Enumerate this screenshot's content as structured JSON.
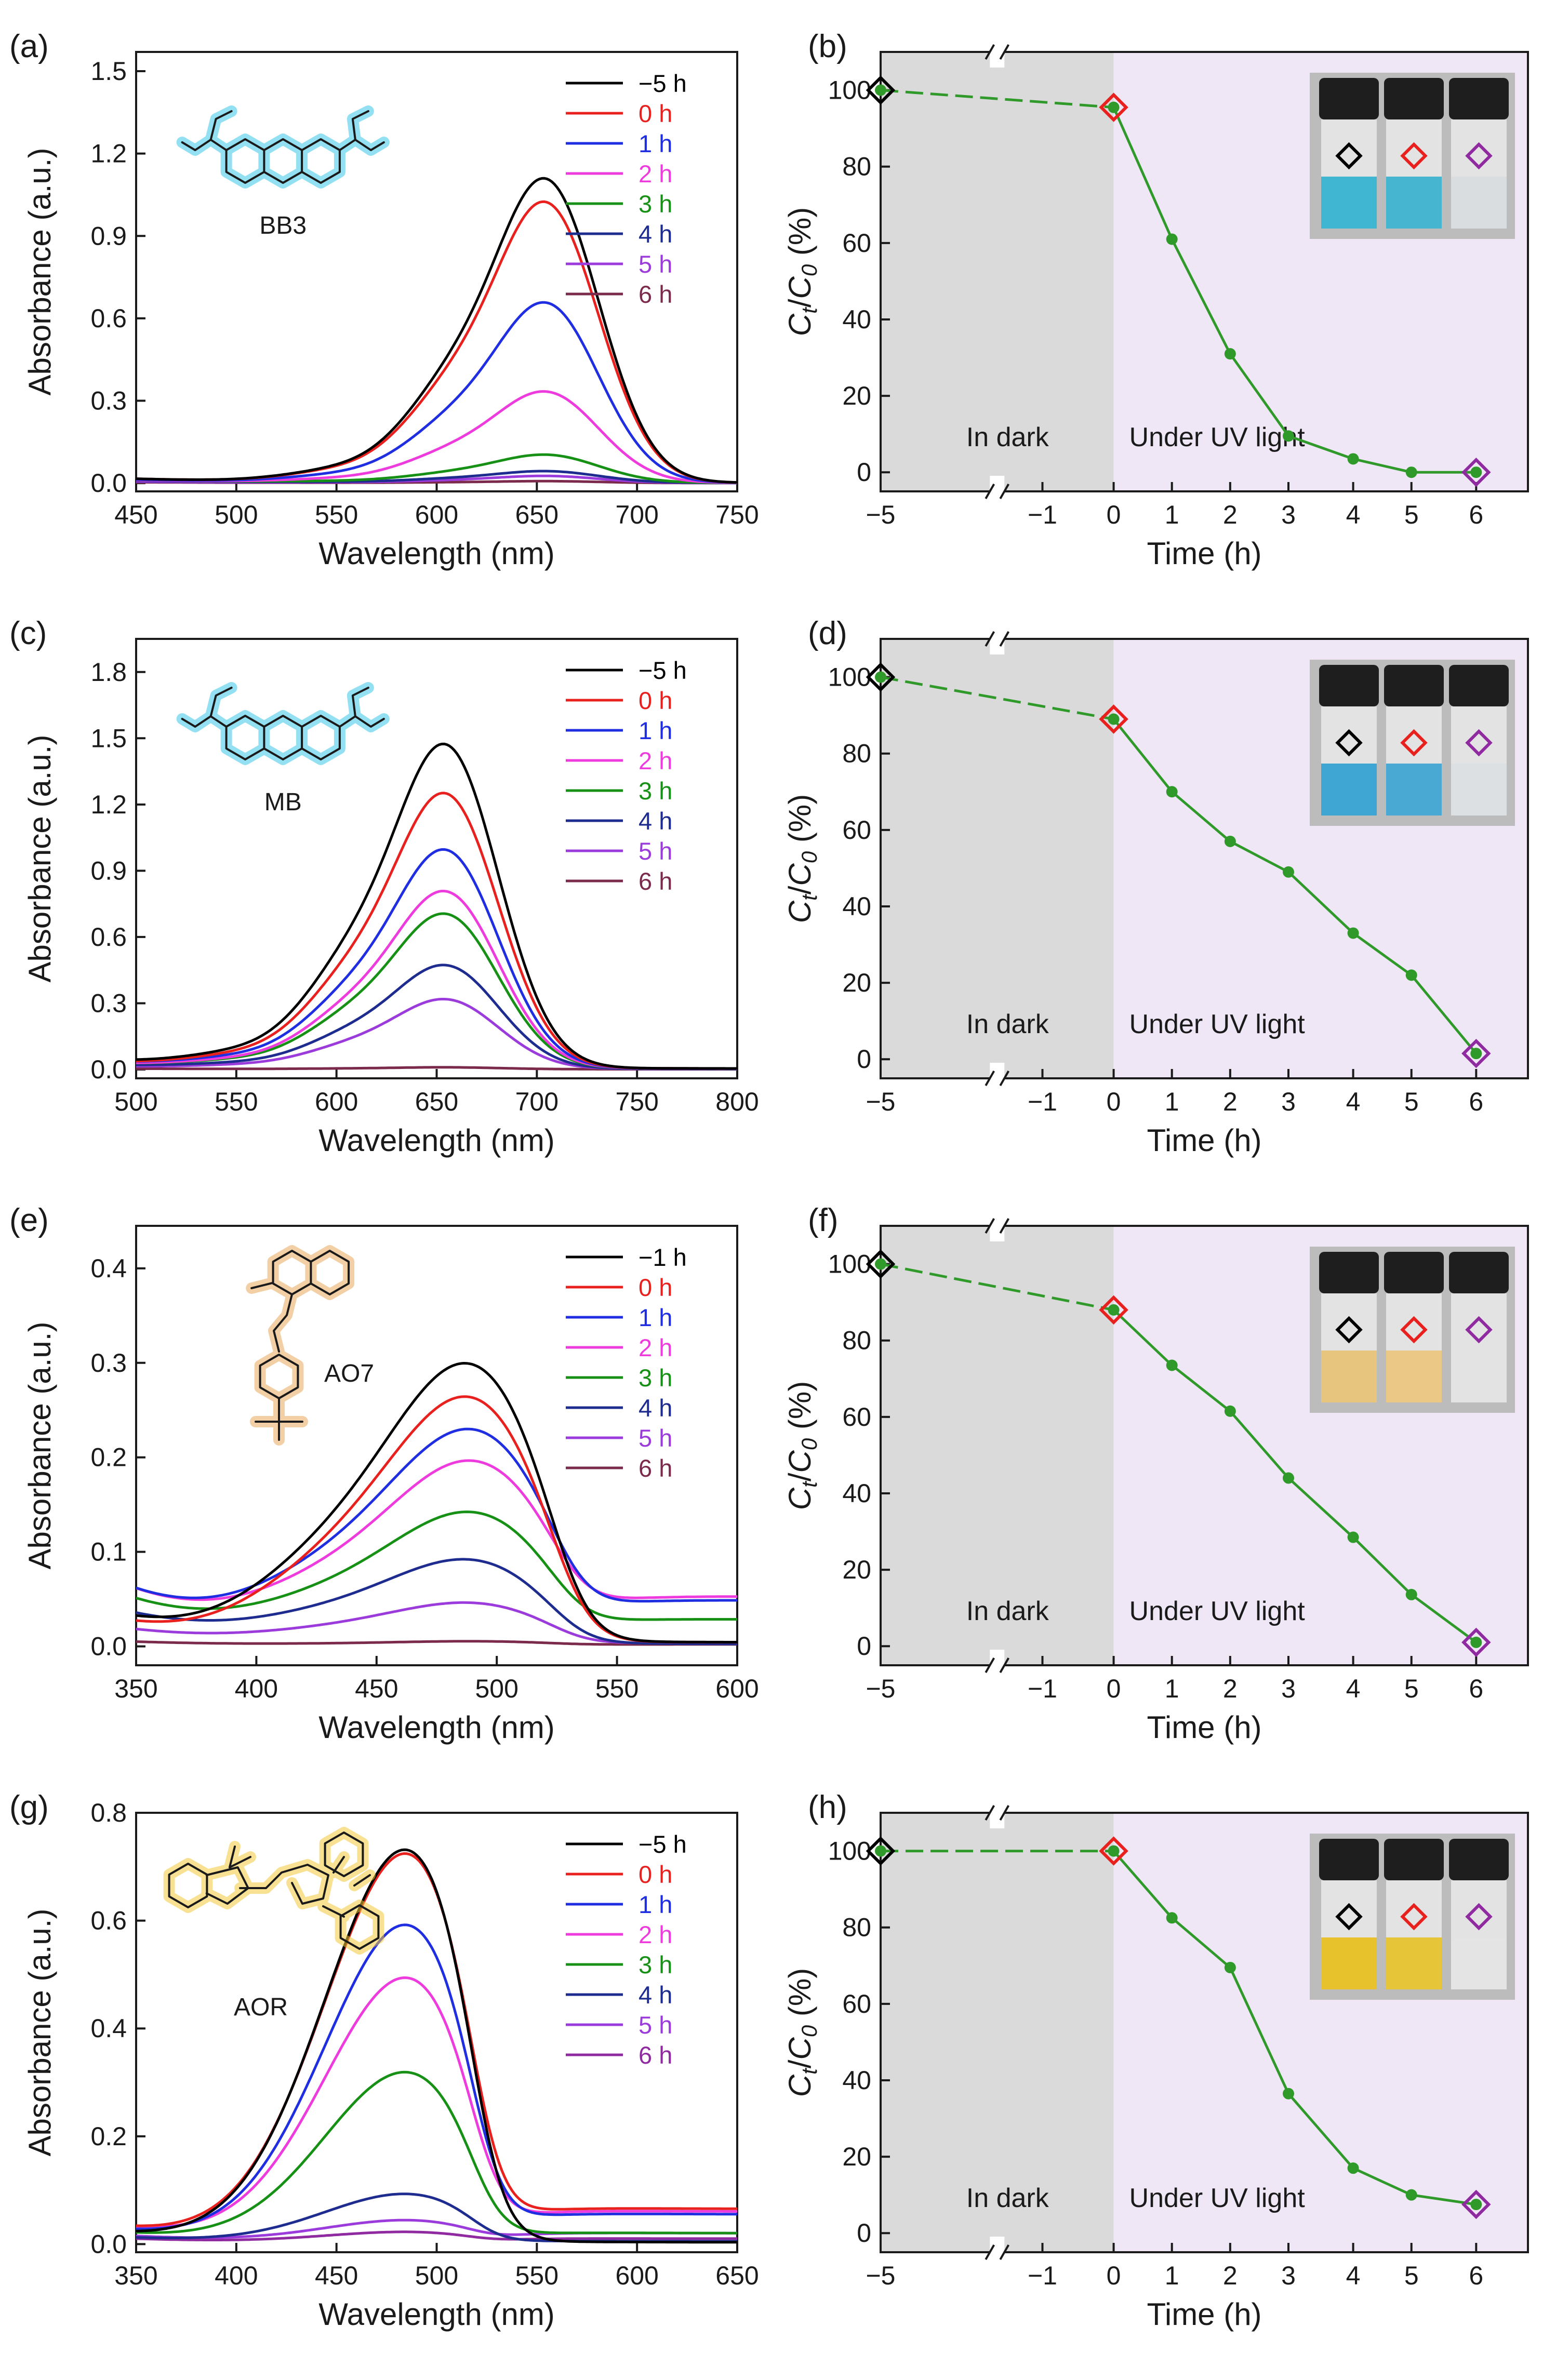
{
  "figure": {
    "colors": {
      "-5": "#000000",
      "-1": "#000000",
      "0": "#e8211e",
      "1": "#1f2ee0",
      "2": "#ee3bdd",
      "3": "#179016",
      "4": "#1d2c8e",
      "5": "#9b3bdc",
      "6": "#7b2a4c",
      "6AOR": "#8f2aa0",
      "line": "#2f9a2a",
      "dark": "#dadada",
      "uv": "#efe7f6"
    }
  },
  "chart_data": [
    {
      "id": "a",
      "type": "line",
      "panel_label": "(a)",
      "dye": "BB3",
      "glow": "#3ac6e8",
      "xlabel": "Wavelength (nm)",
      "ylabel": "Absorbance (a.u.)",
      "xlim": [
        450,
        750
      ],
      "ylim": [
        -0.03,
        1.57
      ],
      "xticks": [
        "450",
        "500",
        "550",
        "600",
        "650",
        "700",
        "750"
      ],
      "yticks": [
        "0.0",
        "0.3",
        "0.6",
        "0.9",
        "1.2",
        "1.5"
      ],
      "series": [
        {
          "name": "−5 h",
          "ckey": "-5",
          "shape": {
            "k": [
              0.015,
              0.6,
              0.02,
              1.3,
              0.012,
              45,
              0.005,
              0
            ]
          }
        },
        {
          "name": "0 h",
          "ckey": "0",
          "shape": {
            "k": [
              0.015,
              0.52,
              0.02,
              1.2,
              0.012,
              45,
              0.005,
              0
            ]
          }
        },
        {
          "name": "1 h",
          "ckey": "1",
          "shape": {
            "k": [
              0.012,
              0.34,
              0.02,
              0.77,
              0.01,
              45,
              0.005,
              0
            ]
          }
        },
        {
          "name": "2 h",
          "ckey": "2",
          "shape": {
            "k": [
              0.01,
              0.18,
              0.015,
              0.39,
              0.008,
              45,
              0.004,
              0
            ]
          }
        },
        {
          "name": "3 h",
          "ckey": "3",
          "shape": {
            "k": [
              0.01,
              0.06,
              0.012,
              0.12,
              0.006,
              40,
              0.004,
              0
            ]
          }
        },
        {
          "name": "4 h",
          "ckey": "4",
          "shape": {
            "k": [
              0.008,
              0.04,
              0.01,
              0.05,
              0.004,
              40,
              0.003,
              0
            ]
          }
        },
        {
          "name": "5 h",
          "ckey": "5",
          "shape": {
            "k": [
              0.005,
              0.025,
              0.005,
              0.03,
              0.003,
              40,
              0.002,
              0
            ]
          }
        },
        {
          "name": "6 h",
          "ckey": "6",
          "shape": {
            "k": [
              0.003,
              0.005,
              0.003,
              0.008,
              0.001,
              40,
              0.001,
              0
            ]
          }
        }
      ]
    },
    {
      "id": "b",
      "type": "line",
      "panel_label": "(b)",
      "xlabel": "Time (h)",
      "ylabel": "Ct/C0 (%)",
      "ylim": [
        -5,
        110
      ],
      "xticks": [
        "−5",
        "−1",
        "0",
        "1",
        "2",
        "3",
        "4",
        "5",
        "6"
      ],
      "yticks": [
        "0",
        "20",
        "40",
        "60",
        "80",
        "100"
      ],
      "region_labels": [
        "In dark",
        "Under UV light"
      ],
      "x": [
        -5,
        0,
        1,
        2,
        3,
        4,
        5,
        6
      ],
      "values": [
        100,
        95.5,
        61,
        31,
        9.5,
        3.5,
        0,
        0
      ]
    },
    {
      "id": "c",
      "type": "line",
      "panel_label": "(c)",
      "dye": "MB",
      "glow": "#3ac6e8",
      "xlabel": "Wavelength (nm)",
      "ylabel": "Absorbance (a.u.)",
      "xlim": [
        500,
        800
      ],
      "ylim": [
        -0.04,
        1.95
      ],
      "xticks": [
        "500",
        "550",
        "600",
        "650",
        "700",
        "750",
        "800"
      ],
      "yticks": [
        "0.0",
        "0.3",
        "0.6",
        "0.9",
        "1.2",
        "1.5",
        "1.8"
      ],
      "series": [
        {
          "name": "−5 h",
          "ckey": "-5",
          "shape": {
            "k": [
              0.06,
              0.97,
              0.06,
              1.72,
              0.04,
              50,
              0.02,
              0
            ]
          }
        },
        {
          "name": "0 h",
          "ckey": "0",
          "shape": {
            "k": [
              0.05,
              0.84,
              0.05,
              1.46,
              0.035,
              50,
              0.02,
              0
            ]
          }
        },
        {
          "name": "1 h",
          "ckey": "1",
          "shape": {
            "k": [
              0.05,
              0.65,
              0.05,
              1.16,
              0.03,
              50,
              0.02,
              0
            ]
          }
        },
        {
          "name": "2 h",
          "ckey": "2",
          "shape": {
            "k": [
              0.04,
              0.55,
              0.04,
              0.94,
              0.03,
              50,
              0.02,
              0
            ]
          }
        },
        {
          "name": "3 h",
          "ckey": "3",
          "shape": {
            "k": [
              0.04,
              0.47,
              0.04,
              0.82,
              0.03,
              50,
              0.02,
              0
            ]
          }
        },
        {
          "name": "4 h",
          "ckey": "4",
          "shape": {
            "k": [
              0.03,
              0.34,
              0.03,
              0.55,
              0.02,
              50,
              0.01,
              0
            ]
          }
        },
        {
          "name": "5 h",
          "ckey": "5",
          "shape": {
            "k": [
              0.02,
              0.22,
              0.02,
              0.37,
              0.02,
              50,
              0.01,
              0
            ]
          }
        },
        {
          "name": "6 h",
          "ckey": "6",
          "shape": {
            "k": [
              0.005,
              0.005,
              0.005,
              0.01,
              0.005,
              50,
              0.005,
              0
            ]
          }
        }
      ]
    },
    {
      "id": "d",
      "type": "line",
      "panel_label": "(d)",
      "xlabel": "Time (h)",
      "ylabel": "Ct/C0 (%)",
      "ylim": [
        -5,
        110
      ],
      "xticks": [
        "−5",
        "−1",
        "0",
        "1",
        "2",
        "3",
        "4",
        "5",
        "6"
      ],
      "yticks": [
        "0",
        "20",
        "40",
        "60",
        "80",
        "100"
      ],
      "region_labels": [
        "In dark",
        "Under UV light"
      ],
      "x": [
        -5,
        0,
        1,
        2,
        3,
        4,
        5,
        6
      ],
      "values": [
        100,
        89,
        70,
        57,
        49,
        33,
        22,
        1.5
      ]
    },
    {
      "id": "e",
      "type": "line",
      "panel_label": "(e)",
      "dye": "AO7",
      "glow": "#e8a85a",
      "xlabel": "Wavelength (nm)",
      "ylabel": "Absorbance (a.u.)",
      "xlim": [
        350,
        600
      ],
      "ylim": [
        -0.02,
        0.445
      ],
      "xticks": [
        "350",
        "400",
        "450",
        "500",
        "550",
        "600"
      ],
      "yticks": [
        "0.0",
        "0.1",
        "0.2",
        "0.3",
        "0.4"
      ],
      "series": [
        {
          "name": "−1 h",
          "ckey": "-1",
          "shape": {
            "e": [
              0.03,
              0.315,
              485,
              0.004
            ]
          }
        },
        {
          "name": "0 h",
          "ckey": "0",
          "shape": {
            "e": [
              0.025,
              0.278,
              485,
              0.004
            ]
          }
        },
        {
          "name": "1 h",
          "ckey": "1",
          "shape": {
            "e": [
              0.06,
              0.233,
              485,
              0.048
            ]
          }
        },
        {
          "name": "2 h",
          "ckey": "2",
          "shape": {
            "e": [
              0.06,
              0.197,
              485,
              0.052
            ]
          }
        },
        {
          "name": "3 h",
          "ckey": "3",
          "shape": {
            "e": [
              0.05,
              0.143,
              485,
              0.028
            ]
          }
        },
        {
          "name": "4 h",
          "ckey": "4",
          "shape": {
            "e": [
              0.035,
              0.094,
              485,
              0.002
            ]
          }
        },
        {
          "name": "5 h",
          "ckey": "5",
          "shape": {
            "e": [
              0.018,
              0.047,
              485,
              0.003
            ]
          }
        },
        {
          "name": "6 h",
          "ckey": "6",
          "shape": {
            "e": [
              0.005,
              0.005,
              485,
              0.002
            ]
          }
        }
      ]
    },
    {
      "id": "f",
      "type": "line",
      "panel_label": "(f)",
      "xlabel": "Time (h)",
      "ylabel": "Ct/C0 (%)",
      "ylim": [
        -5,
        110
      ],
      "xticks": [
        "−5",
        "−1",
        "0",
        "1",
        "2",
        "3",
        "4",
        "5",
        "6"
      ],
      "yticks": [
        "0",
        "20",
        "40",
        "60",
        "80",
        "100"
      ],
      "region_labels": [
        "In dark",
        "Under UV light"
      ],
      "x": [
        -5,
        0,
        1,
        2,
        3,
        4,
        5,
        6
      ],
      "values": [
        100,
        88,
        73.5,
        61.5,
        44,
        28.5,
        13.5,
        1
      ]
    },
    {
      "id": "g",
      "type": "line",
      "panel_label": "(g)",
      "dye": "AOR",
      "glow": "#f2c83a",
      "xlabel": "Wavelength (nm)",
      "ylabel": "Absorbance (a.u.)",
      "xlim": [
        350,
        650
      ],
      "ylim": [
        -0.015,
        0.8
      ],
      "xticks": [
        "350",
        "400",
        "450",
        "500",
        "550",
        "600",
        "650"
      ],
      "yticks": [
        "0.0",
        "0.2",
        "0.4",
        "0.6",
        "0.8"
      ],
      "series": [
        {
          "name": "−5 h",
          "ckey": "-5",
          "shape": {
            "g": [
              0.02,
              0.705,
              485,
              0.003
            ]
          }
        },
        {
          "name": "0 h",
          "ckey": "0",
          "shape": {
            "g": [
              0.03,
              0.695,
              485,
              0.065
            ]
          }
        },
        {
          "name": "1 h",
          "ckey": "1",
          "shape": {
            "g": [
              0.025,
              0.568,
              485,
              0.055
            ]
          }
        },
        {
          "name": "2 h",
          "ckey": "2",
          "shape": {
            "g": [
              0.03,
              0.472,
              485,
              0.06
            ]
          }
        },
        {
          "name": "3 h",
          "ckey": "3",
          "shape": {
            "g": [
              0.02,
              0.305,
              485,
              0.02
            ]
          }
        },
        {
          "name": "4 h",
          "ckey": "4",
          "shape": {
            "g": [
              0.012,
              0.088,
              485,
              0.005
            ]
          }
        },
        {
          "name": "5 h",
          "ckey": "5",
          "shape": {
            "g": [
              0.015,
              0.04,
              485,
              0.02
            ]
          }
        },
        {
          "name": "6 h",
          "ckey": "6AOR",
          "shape": {
            "g": [
              0.01,
              0.02,
              485,
              0.01
            ]
          }
        }
      ]
    },
    {
      "id": "h",
      "type": "line",
      "panel_label": "(h)",
      "xlabel": "Time (h)",
      "ylabel": "Ct/C0 (%)",
      "ylim": [
        -5,
        110
      ],
      "xticks": [
        "−5",
        "−1",
        "0",
        "1",
        "2",
        "3",
        "4",
        "5",
        "6"
      ],
      "yticks": [
        "0",
        "20",
        "40",
        "60",
        "80",
        "100"
      ],
      "region_labels": [
        "In dark",
        "Under UV light"
      ],
      "x": [
        -5,
        0,
        1,
        2,
        3,
        4,
        5,
        6
      ],
      "values": [
        100,
        100,
        82.5,
        69.5,
        36.5,
        17,
        10,
        7.5
      ]
    }
  ]
}
